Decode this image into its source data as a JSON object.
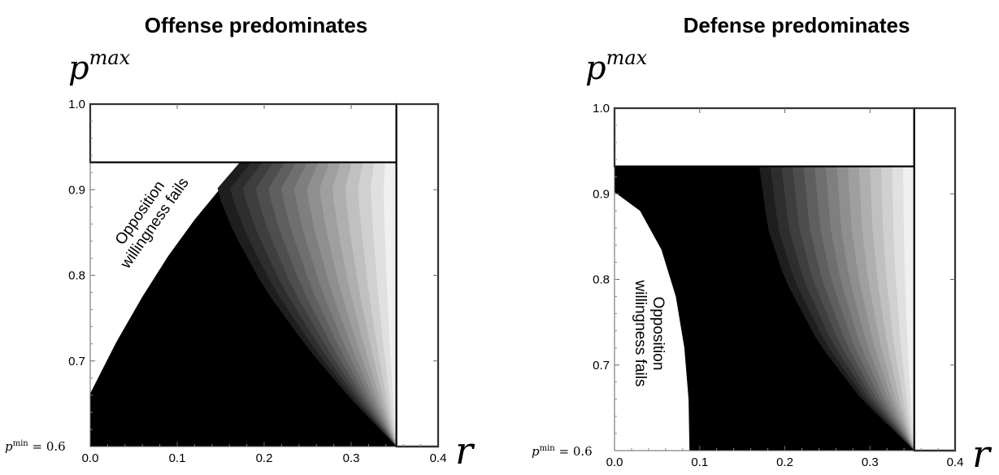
{
  "chart_data": [
    {
      "type": "heatmap",
      "title": "Offense predominates",
      "ylabel": "p",
      "ylabel_sup": "max",
      "xlabel": "r",
      "xlim": [
        0,
        0.4
      ],
      "ylim": [
        0.6,
        1.0
      ],
      "x_ticks": [
        "0.0",
        "0.1",
        "0.2",
        "0.3",
        "0.4"
      ],
      "y_ticks": [
        "1.0",
        "0.9",
        "0.8",
        "0.7"
      ],
      "pmin_label": {
        "p": "p",
        "sup": "min",
        "rest": " = 0.6"
      },
      "annotation": {
        "line1": "Opposition",
        "line2": "willingness fails"
      },
      "colors": {
        "fill": "#000000",
        "frame": "#000000",
        "band_light": "#f0f0f0"
      },
      "r_max": 0.352,
      "p_top": 0.932,
      "opposition_boundary": [
        [
          0.0,
          0.662
        ],
        [
          0.03,
          0.722
        ],
        [
          0.06,
          0.775
        ],
        [
          0.09,
          0.823
        ],
        [
          0.12,
          0.865
        ],
        [
          0.15,
          0.902
        ],
        [
          0.172,
          0.932
        ]
      ],
      "shade_front": [
        [
          0.352,
          0.6
        ],
        [
          0.3,
          0.655
        ],
        [
          0.25,
          0.715
        ],
        [
          0.2,
          0.785
        ],
        [
          0.165,
          0.85
        ],
        [
          0.145,
          0.9
        ],
        [
          0.172,
          0.932
        ]
      ],
      "shade_right": [
        [
          0.352,
          0.6
        ],
        [
          0.352,
          0.932
        ]
      ],
      "shade_levels": 14
    },
    {
      "type": "heatmap",
      "title": "Defense predominates",
      "ylabel": "p",
      "ylabel_sup": "max",
      "xlabel": "r",
      "xlim": [
        0,
        0.4
      ],
      "ylim": [
        0.6,
        1.0
      ],
      "x_ticks": [
        "0.0",
        "0.1",
        "0.2",
        "0.3",
        "0.4"
      ],
      "y_ticks": [
        "1.0",
        "0.9",
        "0.8",
        "0.7"
      ],
      "pmin_label": {
        "p": "p",
        "sup": "min",
        "rest": " = 0.6"
      },
      "annotation": {
        "line1": "Opposition",
        "line2": "willingness fails"
      },
      "colors": {
        "fill": "#000000",
        "frame": "#000000",
        "band_light": "#f0f0f0"
      },
      "r_max": 0.352,
      "p_top": 0.932,
      "opposition_boundary": [
        [
          0.0,
          0.902
        ],
        [
          0.03,
          0.88
        ],
        [
          0.055,
          0.835
        ],
        [
          0.072,
          0.78
        ],
        [
          0.082,
          0.72
        ],
        [
          0.087,
          0.66
        ],
        [
          0.088,
          0.6
        ]
      ],
      "shade_front": [
        [
          0.352,
          0.6
        ],
        [
          0.29,
          0.66
        ],
        [
          0.24,
          0.725
        ],
        [
          0.2,
          0.8
        ],
        [
          0.18,
          0.86
        ],
        [
          0.17,
          0.932
        ]
      ],
      "shade_right": [
        [
          0.352,
          0.6
        ],
        [
          0.352,
          0.932
        ]
      ],
      "shade_levels": 14
    }
  ]
}
